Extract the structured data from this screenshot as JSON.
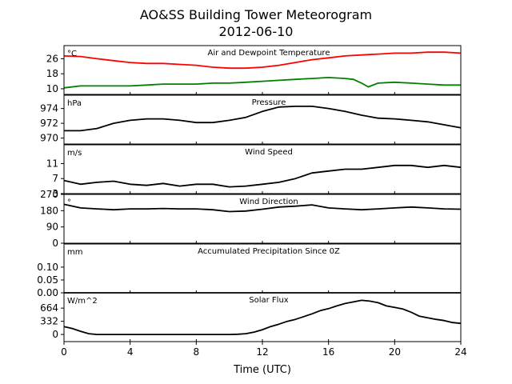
{
  "figure": {
    "title": "AO&SS Building Tower Meteorogram",
    "subtitle": "2012-06-10",
    "xlabel": "Time (UTC)",
    "xlim": [
      0,
      24
    ],
    "xticks": [
      0,
      4,
      8,
      12,
      16,
      20,
      24
    ]
  },
  "chart_data": [
    {
      "type": "line",
      "title": "Air and Dewpoint Temperature",
      "unit": "°C",
      "ylim": [
        7,
        33
      ],
      "yticks": [
        10,
        18,
        26
      ],
      "series": [
        {
          "color": "#ff0000",
          "x": [
            0,
            1,
            2,
            3,
            4,
            5,
            6,
            7,
            8,
            9,
            10,
            11,
            12,
            13,
            14,
            15,
            16,
            17,
            18,
            19,
            20,
            21,
            22,
            23,
            24
          ],
          "y": [
            27.5,
            27.2,
            26,
            25,
            24,
            23.5,
            23.5,
            23,
            22.5,
            21.5,
            21,
            21,
            21.5,
            22.5,
            24,
            25.5,
            26.5,
            27.5,
            28,
            28.5,
            29,
            29,
            29.5,
            29.5,
            29
          ]
        },
        {
          "color": "#008000",
          "x": [
            0,
            1,
            2,
            3,
            4,
            5,
            6,
            7,
            8,
            9,
            10,
            11,
            12,
            13,
            14,
            15,
            16,
            17,
            17.5,
            18,
            18.4,
            19,
            20,
            21,
            22,
            23,
            24
          ],
          "y": [
            10.5,
            11.5,
            11.5,
            11.5,
            11.5,
            12,
            12.5,
            12.5,
            12.5,
            13,
            13,
            13.5,
            14,
            14.5,
            15,
            15.5,
            16,
            15.5,
            15,
            13,
            11,
            13,
            13.5,
            13,
            12.5,
            12,
            12
          ]
        }
      ]
    },
    {
      "type": "line",
      "title": "Pressure",
      "unit": "hPa",
      "ylim": [
        969.2,
        975.8
      ],
      "yticks": [
        970,
        972,
        974
      ],
      "series": [
        {
          "color": "#000000",
          "x": [
            0,
            1,
            2,
            3,
            4,
            5,
            6,
            7,
            8,
            9,
            10,
            11,
            12,
            13,
            14,
            15,
            16,
            17,
            18,
            19,
            20,
            21,
            22,
            23,
            24
          ],
          "y": [
            971,
            971,
            971.3,
            972,
            972.4,
            972.6,
            972.6,
            972.4,
            972.1,
            972.1,
            972.4,
            972.8,
            973.6,
            974.2,
            974.3,
            974.3,
            974,
            973.6,
            973.1,
            972.7,
            972.6,
            972.4,
            972.2,
            971.8,
            971.4
          ]
        }
      ]
    },
    {
      "type": "line",
      "title": "Wind Speed",
      "unit": "m/s",
      "ylim": [
        3,
        16
      ],
      "yticks": [
        3,
        7,
        11
      ],
      "series": [
        {
          "color": "#000000",
          "x": [
            0,
            1,
            2,
            3,
            4,
            5,
            6,
            7,
            8,
            9,
            10,
            11,
            12,
            13,
            14,
            15,
            16,
            17,
            18,
            19,
            20,
            21,
            22,
            23,
            24
          ],
          "y": [
            6.5,
            5.5,
            6,
            6.3,
            5.5,
            5.2,
            5.7,
            5,
            5.5,
            5.5,
            4.8,
            5,
            5.5,
            6,
            7,
            8.5,
            9,
            9.5,
            9.5,
            10,
            10.5,
            10.5,
            10,
            10.5,
            10
          ]
        }
      ]
    },
    {
      "type": "line",
      "title": "Wind Direction",
      "unit": "°",
      "ylim": [
        0,
        270
      ],
      "yticks": [
        0,
        90,
        180,
        270
      ],
      "series": [
        {
          "color": "#000000",
          "x": [
            0,
            1,
            2,
            3,
            4,
            5,
            6,
            7,
            8,
            9,
            10,
            11,
            12,
            13,
            14,
            15,
            16,
            17,
            18,
            19,
            20,
            21,
            22,
            23,
            24
          ],
          "y": [
            215,
            195,
            190,
            185,
            190,
            190,
            192,
            190,
            190,
            185,
            175,
            178,
            188,
            200,
            205,
            212,
            195,
            190,
            185,
            190,
            195,
            200,
            195,
            190,
            188
          ]
        }
      ]
    },
    {
      "type": "line",
      "title": "Accumulated Precipitation Since 0Z",
      "unit": "mm",
      "ylim": [
        0,
        0.19
      ],
      "yticks": [
        0.0,
        0.05,
        0.1
      ],
      "series": [
        {
          "color": "#000000",
          "x": [
            0,
            24
          ],
          "y": [
            0,
            0
          ]
        }
      ]
    },
    {
      "type": "line",
      "title": "Solar Flux",
      "unit": "W/m^2",
      "ylim": [
        -180,
        1050
      ],
      "yticks": [
        0,
        332,
        664
      ],
      "series": [
        {
          "color": "#000000",
          "x": [
            0,
            0.5,
            1,
            1.5,
            2,
            3,
            4,
            5,
            6,
            7,
            8,
            9,
            10,
            10.5,
            11,
            11.5,
            12,
            12.5,
            13,
            13.5,
            14,
            14.5,
            15,
            15.5,
            16,
            16.5,
            17,
            17.5,
            18,
            18.5,
            19,
            19.5,
            20,
            20.5,
            21,
            21.5,
            22,
            22.5,
            23,
            23.5,
            24
          ],
          "y": [
            200,
            150,
            80,
            20,
            0,
            0,
            0,
            0,
            0,
            0,
            0,
            0,
            0,
            5,
            20,
            60,
            120,
            200,
            260,
            330,
            380,
            450,
            520,
            600,
            650,
            720,
            780,
            820,
            860,
            840,
            800,
            720,
            680,
            640,
            560,
            460,
            420,
            380,
            350,
            300,
            280
          ]
        }
      ]
    }
  ]
}
